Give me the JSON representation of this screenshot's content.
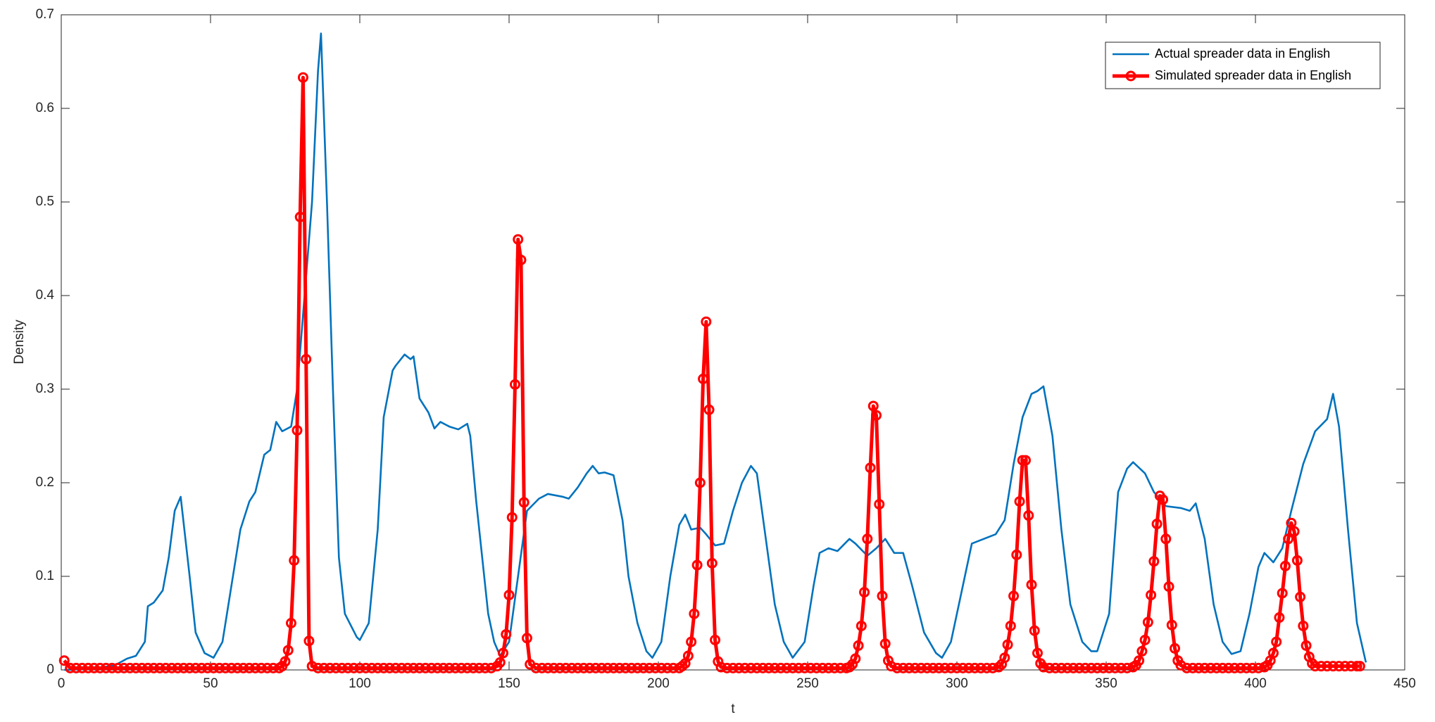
{
  "chart_data": {
    "type": "line",
    "xlabel": "t",
    "ylabel": "Density",
    "xlim": [
      0,
      450
    ],
    "xticks": [
      0,
      50,
      100,
      150,
      200,
      250,
      300,
      350,
      400,
      450
    ],
    "ylim": [
      0,
      0.7
    ],
    "yticks": [
      0,
      0.1,
      0.2,
      0.3,
      0.4,
      0.5,
      0.6,
      0.7
    ],
    "grid": false,
    "legend": "northeast",
    "series": [
      {
        "name": "Actual spreader data in English",
        "color": "#0072bd",
        "marker": "none",
        "x": [
          1,
          10,
          18,
          22,
          25,
          28,
          29,
          31,
          34,
          36,
          38,
          40,
          43,
          45,
          48,
          51,
          54,
          57,
          60,
          63,
          65,
          68,
          70,
          72,
          74,
          77,
          79,
          81,
          84,
          86,
          87,
          89,
          91,
          93,
          95,
          99,
          100,
          103,
          106,
          108,
          111,
          112,
          115,
          117,
          118,
          120,
          123,
          125,
          127,
          130,
          133,
          136,
          137,
          139,
          141,
          143,
          145,
          147,
          150,
          153,
          156,
          160,
          163,
          168,
          170,
          173,
          176,
          178,
          180,
          182,
          185,
          188,
          190,
          193,
          196,
          198,
          201,
          204,
          207,
          209,
          211,
          214,
          216,
          219,
          222,
          225,
          228,
          231,
          233,
          236,
          239,
          242,
          245,
          249,
          252,
          254,
          257,
          260,
          264,
          266,
          270,
          273,
          276,
          279,
          282,
          285,
          289,
          293,
          295,
          298,
          302,
          305,
          309,
          313,
          316,
          319,
          322,
          325,
          327,
          329,
          332,
          335,
          338,
          342,
          345,
          347,
          351,
          354,
          357,
          359,
          363,
          366,
          370,
          375,
          378,
          380,
          383,
          386,
          389,
          392,
          395,
          398,
          401,
          403,
          406,
          409,
          412,
          416,
          420,
          424,
          426,
          428,
          431,
          434,
          437
        ],
        "values": [
          0,
          0.001,
          0.005,
          0.012,
          0.015,
          0.03,
          0.068,
          0.072,
          0.085,
          0.12,
          0.17,
          0.185,
          0.1,
          0.04,
          0.018,
          0.013,
          0.03,
          0.09,
          0.15,
          0.18,
          0.19,
          0.23,
          0.235,
          0.265,
          0.255,
          0.26,
          0.3,
          0.38,
          0.5,
          0.64,
          0.68,
          0.5,
          0.3,
          0.12,
          0.06,
          0.035,
          0.032,
          0.05,
          0.15,
          0.27,
          0.32,
          0.325,
          0.337,
          0.332,
          0.335,
          0.29,
          0.275,
          0.258,
          0.265,
          0.26,
          0.257,
          0.263,
          0.25,
          0.18,
          0.12,
          0.06,
          0.03,
          0.015,
          0.03,
          0.1,
          0.17,
          0.183,
          0.188,
          0.185,
          0.183,
          0.195,
          0.21,
          0.218,
          0.21,
          0.211,
          0.208,
          0.16,
          0.1,
          0.05,
          0.02,
          0.013,
          0.03,
          0.1,
          0.155,
          0.166,
          0.15,
          0.152,
          0.145,
          0.133,
          0.135,
          0.17,
          0.2,
          0.218,
          0.21,
          0.14,
          0.07,
          0.03,
          0.013,
          0.03,
          0.09,
          0.125,
          0.13,
          0.127,
          0.14,
          0.135,
          0.122,
          0.13,
          0.14,
          0.125,
          0.125,
          0.09,
          0.04,
          0.018,
          0.013,
          0.03,
          0.09,
          0.135,
          0.14,
          0.145,
          0.16,
          0.22,
          0.27,
          0.295,
          0.298,
          0.303,
          0.25,
          0.15,
          0.07,
          0.03,
          0.02,
          0.02,
          0.06,
          0.19,
          0.215,
          0.222,
          0.21,
          0.19,
          0.175,
          0.173,
          0.17,
          0.178,
          0.14,
          0.07,
          0.03,
          0.017,
          0.02,
          0.06,
          0.11,
          0.125,
          0.115,
          0.13,
          0.17,
          0.22,
          0.255,
          0.268,
          0.295,
          0.26,
          0.15,
          0.05,
          0.008
        ]
      },
      {
        "name": "Simulated spreader data in English",
        "color": "#ff0000",
        "marker": "circle",
        "x": [
          1,
          3,
          5,
          7,
          9,
          11,
          13,
          15,
          17,
          19,
          21,
          23,
          25,
          27,
          29,
          31,
          33,
          35,
          37,
          39,
          41,
          43,
          45,
          47,
          49,
          51,
          53,
          55,
          57,
          59,
          61,
          63,
          65,
          67,
          69,
          71,
          73,
          74,
          75,
          76,
          77,
          78,
          79,
          80,
          81,
          82,
          83,
          84,
          86,
          88,
          90,
          92,
          94,
          96,
          98,
          100,
          102,
          104,
          106,
          108,
          110,
          112,
          114,
          116,
          118,
          120,
          122,
          124,
          126,
          128,
          130,
          132,
          134,
          136,
          138,
          140,
          142,
          144,
          146,
          147,
          148,
          149,
          150,
          151,
          152,
          153,
          154,
          155,
          156,
          157,
          159,
          161,
          163,
          165,
          167,
          169,
          171,
          173,
          175,
          177,
          179,
          181,
          183,
          185,
          187,
          189,
          191,
          193,
          195,
          197,
          199,
          201,
          203,
          205,
          207,
          208,
          209,
          210,
          211,
          212,
          213,
          214,
          215,
          216,
          217,
          218,
          219,
          220,
          221,
          223,
          225,
          227,
          229,
          231,
          233,
          235,
          237,
          239,
          241,
          243,
          245,
          247,
          249,
          251,
          253,
          255,
          257,
          259,
          261,
          263,
          264,
          265,
          266,
          267,
          268,
          269,
          270,
          271,
          272,
          273,
          274,
          275,
          276,
          277,
          278,
          280,
          282,
          284,
          286,
          288,
          290,
          292,
          294,
          296,
          298,
          300,
          302,
          304,
          306,
          308,
          310,
          312,
          314,
          315,
          316,
          317,
          318,
          319,
          320,
          321,
          322,
          323,
          324,
          325,
          326,
          327,
          328,
          329,
          331,
          333,
          335,
          337,
          339,
          341,
          343,
          345,
          347,
          349,
          351,
          353,
          355,
          357,
          359,
          360,
          361,
          362,
          363,
          364,
          365,
          366,
          367,
          368,
          369,
          370,
          371,
          372,
          373,
          374,
          375,
          377,
          379,
          381,
          383,
          385,
          387,
          389,
          391,
          393,
          395,
          397,
          399,
          401,
          403,
          404,
          405,
          406,
          407,
          408,
          409,
          410,
          411,
          412,
          413,
          414,
          415,
          416,
          417,
          418,
          419,
          420,
          422,
          424,
          426,
          428,
          430,
          432,
          434,
          435
        ],
        "values": [
          0.01,
          0.002,
          0.002,
          0.002,
          0.002,
          0.002,
          0.002,
          0.002,
          0.002,
          0.002,
          0.002,
          0.002,
          0.002,
          0.002,
          0.002,
          0.002,
          0.002,
          0.002,
          0.002,
          0.002,
          0.002,
          0.002,
          0.002,
          0.002,
          0.002,
          0.002,
          0.002,
          0.002,
          0.002,
          0.002,
          0.002,
          0.002,
          0.002,
          0.002,
          0.002,
          0.002,
          0.002,
          0.004,
          0.009,
          0.021,
          0.05,
          0.117,
          0.256,
          0.484,
          0.633,
          0.332,
          0.031,
          0.004,
          0.002,
          0.002,
          0.002,
          0.002,
          0.002,
          0.002,
          0.002,
          0.002,
          0.002,
          0.002,
          0.002,
          0.002,
          0.002,
          0.002,
          0.002,
          0.002,
          0.002,
          0.002,
          0.002,
          0.002,
          0.002,
          0.002,
          0.002,
          0.002,
          0.002,
          0.002,
          0.002,
          0.002,
          0.002,
          0.002,
          0.004,
          0.008,
          0.018,
          0.038,
          0.08,
          0.163,
          0.305,
          0.46,
          0.438,
          0.179,
          0.034,
          0.006,
          0.002,
          0.002,
          0.002,
          0.002,
          0.002,
          0.002,
          0.002,
          0.002,
          0.002,
          0.002,
          0.002,
          0.002,
          0.002,
          0.002,
          0.002,
          0.002,
          0.002,
          0.002,
          0.002,
          0.002,
          0.002,
          0.002,
          0.002,
          0.002,
          0.002,
          0.004,
          0.007,
          0.015,
          0.03,
          0.06,
          0.112,
          0.2,
          0.311,
          0.372,
          0.278,
          0.114,
          0.032,
          0.009,
          0.003,
          0.002,
          0.002,
          0.002,
          0.002,
          0.002,
          0.002,
          0.002,
          0.002,
          0.002,
          0.002,
          0.002,
          0.002,
          0.002,
          0.002,
          0.002,
          0.002,
          0.002,
          0.002,
          0.002,
          0.002,
          0.002,
          0.003,
          0.006,
          0.012,
          0.026,
          0.047,
          0.083,
          0.14,
          0.216,
          0.282,
          0.272,
          0.177,
          0.079,
          0.028,
          0.01,
          0.004,
          0.002,
          0.002,
          0.002,
          0.002,
          0.002,
          0.002,
          0.002,
          0.002,
          0.002,
          0.002,
          0.002,
          0.002,
          0.002,
          0.002,
          0.002,
          0.002,
          0.002,
          0.003,
          0.006,
          0.013,
          0.027,
          0.047,
          0.079,
          0.123,
          0.18,
          0.224,
          0.224,
          0.165,
          0.091,
          0.042,
          0.018,
          0.007,
          0.003,
          0.002,
          0.002,
          0.002,
          0.002,
          0.002,
          0.002,
          0.002,
          0.002,
          0.002,
          0.002,
          0.002,
          0.002,
          0.002,
          0.002,
          0.003,
          0.005,
          0.01,
          0.02,
          0.032,
          0.051,
          0.08,
          0.116,
          0.156,
          0.186,
          0.182,
          0.14,
          0.089,
          0.048,
          0.023,
          0.01,
          0.005,
          0.002,
          0.002,
          0.002,
          0.002,
          0.002,
          0.002,
          0.002,
          0.002,
          0.002,
          0.002,
          0.002,
          0.002,
          0.002,
          0.003,
          0.005,
          0.01,
          0.018,
          0.03,
          0.056,
          0.082,
          0.111,
          0.14,
          0.157,
          0.148,
          0.117,
          0.078,
          0.047,
          0.026,
          0.014,
          0.007,
          0.004,
          0.004,
          0.004,
          0.004,
          0.004,
          0.004,
          0.004,
          0.004,
          0.004
        ]
      }
    ]
  }
}
